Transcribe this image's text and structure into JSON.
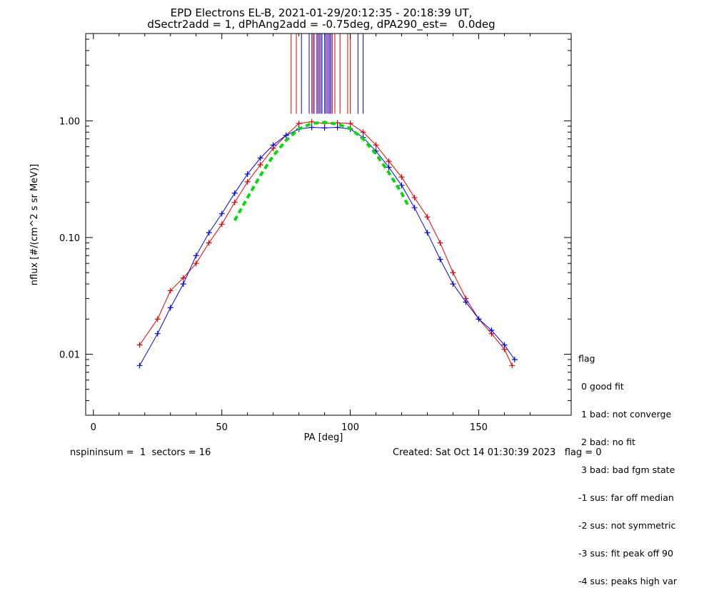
{
  "title_line1": "EPD Electrons EL-B, 2021-01-29/20:12:35 - 20:18:39 UT,",
  "title_line2": "dSectr2add = 1, dPhAng2add = -0.75deg, dPA290_est=   0.0deg",
  "footer": {
    "left": "nspininsum =  1  sectors = 16",
    "right": "Created: Sat Oct 14 01:30:39 2023   flag = 0"
  },
  "legend": {
    "title": "flag",
    "items": [
      " 0 good fit",
      " 1 bad: not converge",
      " 2 bad: no fit",
      " 3 bad: bad fgm state",
      "-1 sus: far off median",
      "-2 sus: not symmetric",
      "-3 sus: fit peak off 90",
      "-4 sus: peaks high var"
    ]
  },
  "colors": {
    "red": "#dd0000",
    "blue": "#0000ee",
    "fit": "#00dd00"
  },
  "chart_data": {
    "type": "scatter",
    "xlabel": "PA [deg]",
    "ylabel": "nflux [#/(cm^2 s sr MeV)]",
    "xlim": [
      -3,
      186
    ],
    "ylim": [
      0.003,
      5.6
    ],
    "yscale": "log",
    "xticks": [
      0,
      50,
      100,
      150
    ],
    "yticks": [
      {
        "value": 0.01,
        "label": "0.01"
      },
      {
        "value": 0.1,
        "label": "0.10"
      },
      {
        "value": 1.0,
        "label": "1.00"
      }
    ],
    "series": [
      {
        "color": "red",
        "points": [
          [
            18,
            0.012
          ],
          [
            25,
            0.02
          ],
          [
            30,
            0.035
          ],
          [
            35,
            0.045
          ],
          [
            40,
            0.06
          ],
          [
            45,
            0.09
          ],
          [
            50,
            0.13
          ],
          [
            55,
            0.2
          ],
          [
            60,
            0.3
          ],
          [
            65,
            0.42
          ],
          [
            70,
            0.58
          ],
          [
            75,
            0.75
          ],
          [
            80,
            0.95
          ],
          [
            85,
            0.98
          ],
          [
            90,
            0.95
          ],
          [
            95,
            0.96
          ],
          [
            100,
            0.95
          ],
          [
            105,
            0.8
          ],
          [
            110,
            0.62
          ],
          [
            115,
            0.45
          ],
          [
            120,
            0.33
          ],
          [
            125,
            0.22
          ],
          [
            130,
            0.15
          ],
          [
            135,
            0.09
          ],
          [
            140,
            0.05
          ],
          [
            145,
            0.03
          ],
          [
            150,
            0.02
          ],
          [
            155,
            0.015
          ],
          [
            160,
            0.011
          ],
          [
            163,
            0.008
          ]
        ]
      },
      {
        "color": "blue",
        "points": [
          [
            18,
            0.008
          ],
          [
            25,
            0.015
          ],
          [
            30,
            0.025
          ],
          [
            35,
            0.04
          ],
          [
            40,
            0.07
          ],
          [
            45,
            0.11
          ],
          [
            50,
            0.16
          ],
          [
            55,
            0.24
          ],
          [
            60,
            0.35
          ],
          [
            65,
            0.48
          ],
          [
            70,
            0.62
          ],
          [
            75,
            0.75
          ],
          [
            80,
            0.85
          ],
          [
            85,
            0.88
          ],
          [
            90,
            0.87
          ],
          [
            95,
            0.88
          ],
          [
            100,
            0.85
          ],
          [
            105,
            0.72
          ],
          [
            110,
            0.55
          ],
          [
            115,
            0.4
          ],
          [
            120,
            0.28
          ],
          [
            125,
            0.18
          ],
          [
            130,
            0.11
          ],
          [
            135,
            0.065
          ],
          [
            140,
            0.04
          ],
          [
            145,
            0.028
          ],
          [
            150,
            0.02
          ],
          [
            155,
            0.016
          ],
          [
            160,
            0.012
          ],
          [
            164,
            0.009
          ]
        ]
      }
    ],
    "fit_curve": {
      "color": "fit",
      "style": "dashed",
      "points": [
        [
          55,
          0.14
        ],
        [
          60,
          0.22
        ],
        [
          65,
          0.34
        ],
        [
          70,
          0.5
        ],
        [
          75,
          0.68
        ],
        [
          80,
          0.85
        ],
        [
          85,
          0.95
        ],
        [
          90,
          0.97
        ],
        [
          95,
          0.94
        ],
        [
          100,
          0.86
        ],
        [
          105,
          0.7
        ],
        [
          110,
          0.52
        ],
        [
          115,
          0.36
        ],
        [
          120,
          0.24
        ],
        [
          123,
          0.18
        ]
      ]
    },
    "vertical_lines": {
      "ymin": 1.15,
      "red": [
        77,
        79,
        85,
        86,
        88,
        91,
        93,
        94,
        96,
        99,
        100
      ],
      "blue": [
        81,
        84,
        85.5,
        87,
        87.5,
        88.5,
        89,
        90,
        90.5,
        91.5,
        92,
        92.5,
        103,
        105
      ]
    }
  }
}
